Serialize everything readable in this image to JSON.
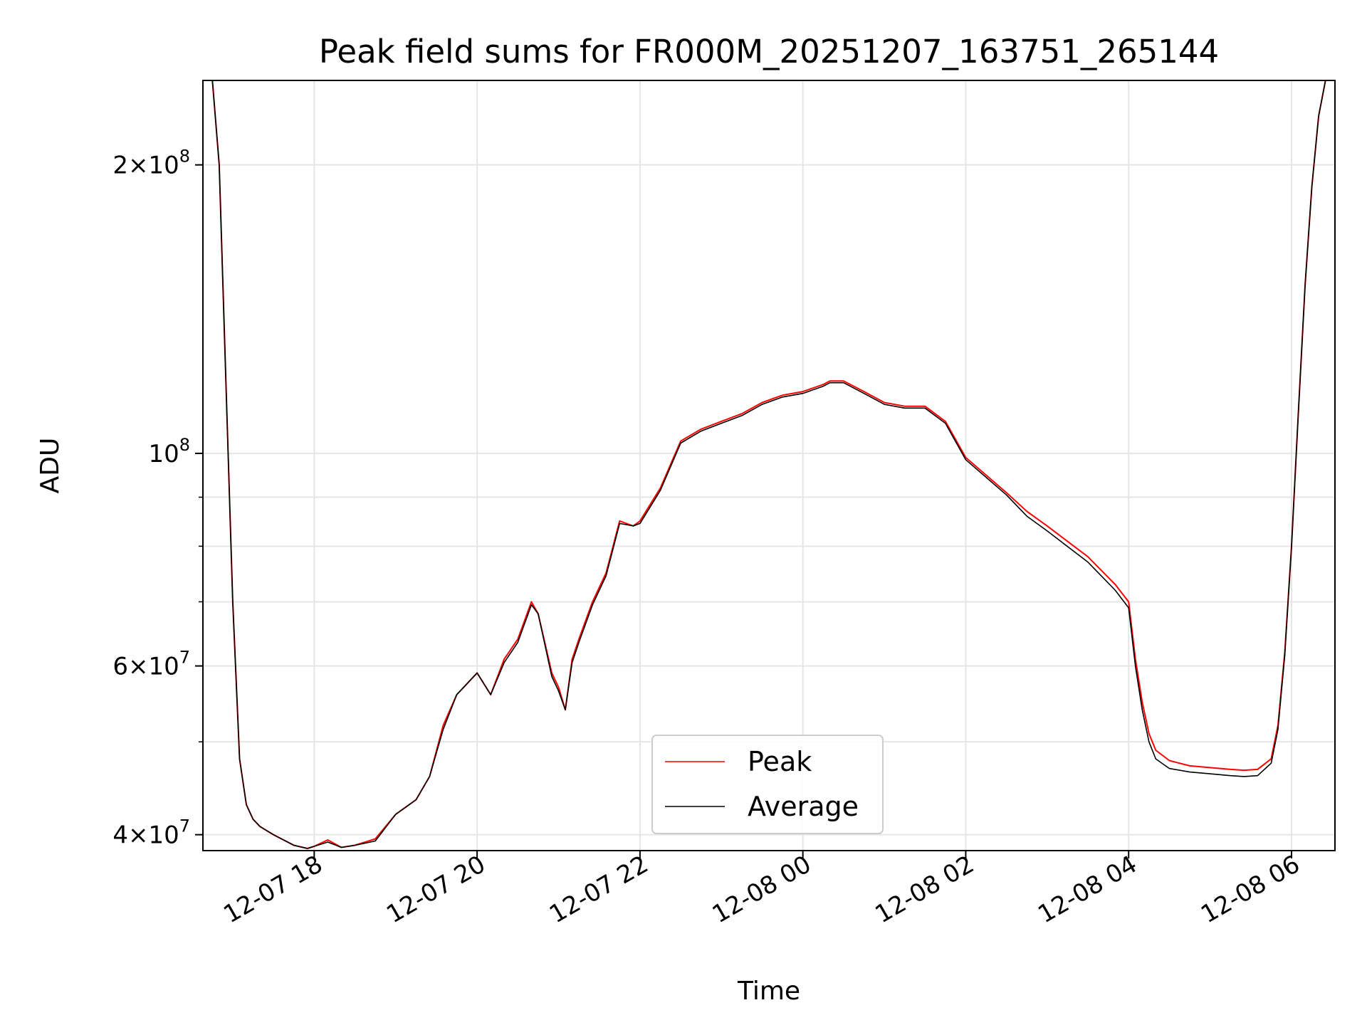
{
  "chart_data": {
    "type": "line",
    "title": "Peak field sums for FR000M_20251207_163751_265144",
    "xlabel": "Time",
    "ylabel": "ADU",
    "yscale": "log",
    "xlim": [
      "2025-12-07 16:38",
      "2025-12-08 06:32"
    ],
    "ylim": [
      38500000,
      245000000
    ],
    "grid": true,
    "legend_position": "bottom-center",
    "x_ticks": [
      "12-07 18",
      "12-07 20",
      "12-07 22",
      "12-08 00",
      "12-08 02",
      "12-08 04",
      "12-08 06"
    ],
    "y_ticks": [
      {
        "value": 40000000,
        "base": "4",
        "exp": "7"
      },
      {
        "value": 60000000,
        "base": "6",
        "exp": "7"
      },
      {
        "value": 100000000,
        "base": "",
        "exp": "8"
      },
      {
        "value": 200000000,
        "base": "2",
        "exp": "8"
      }
    ],
    "series": [
      {
        "name": "Peak",
        "color": "#ff0000",
        "x": [
          "2025-12-07 16:38",
          "2025-12-07 16:45",
          "2025-12-07 16:50",
          "2025-12-07 16:55",
          "2025-12-07 17:00",
          "2025-12-07 17:05",
          "2025-12-07 17:10",
          "2025-12-07 17:15",
          "2025-12-07 17:20",
          "2025-12-07 17:30",
          "2025-12-07 17:45",
          "2025-12-07 17:55",
          "2025-12-07 18:00",
          "2025-12-07 18:10",
          "2025-12-07 18:20",
          "2025-12-07 18:30",
          "2025-12-07 18:45",
          "2025-12-07 19:00",
          "2025-12-07 19:15",
          "2025-12-07 19:25",
          "2025-12-07 19:35",
          "2025-12-07 19:45",
          "2025-12-07 20:00",
          "2025-12-07 20:10",
          "2025-12-07 20:20",
          "2025-12-07 20:30",
          "2025-12-07 20:40",
          "2025-12-07 20:45",
          "2025-12-07 20:55",
          "2025-12-07 21:00",
          "2025-12-07 21:05",
          "2025-12-07 21:10",
          "2025-12-07 21:15",
          "2025-12-07 21:25",
          "2025-12-07 21:35",
          "2025-12-07 21:45",
          "2025-12-07 21:55",
          "2025-12-07 22:00",
          "2025-12-07 22:15",
          "2025-12-07 22:30",
          "2025-12-07 22:45",
          "2025-12-07 23:00",
          "2025-12-07 23:15",
          "2025-12-07 23:30",
          "2025-12-07 23:45",
          "2025-12-08 00:00",
          "2025-12-08 00:15",
          "2025-12-08 00:20",
          "2025-12-08 00:30",
          "2025-12-08 00:45",
          "2025-12-08 01:00",
          "2025-12-08 01:15",
          "2025-12-08 01:30",
          "2025-12-08 01:45",
          "2025-12-08 02:00",
          "2025-12-08 02:30",
          "2025-12-08 02:45",
          "2025-12-08 03:00",
          "2025-12-08 03:30",
          "2025-12-08 03:50",
          "2025-12-08 04:00",
          "2025-12-08 04:05",
          "2025-12-08 04:10",
          "2025-12-08 04:15",
          "2025-12-08 04:20",
          "2025-12-08 04:30",
          "2025-12-08 04:45",
          "2025-12-08 05:00",
          "2025-12-08 05:15",
          "2025-12-08 05:25",
          "2025-12-08 05:35",
          "2025-12-08 05:45",
          "2025-12-08 05:50",
          "2025-12-08 05:55",
          "2025-12-08 06:00",
          "2025-12-08 06:05",
          "2025-12-08 06:10",
          "2025-12-08 06:15",
          "2025-12-08 06:20",
          "2025-12-08 06:25",
          "2025-12-08 06:28"
        ],
        "values": [
          245000000,
          245000000,
          200000000,
          118000000,
          70000000,
          48000000,
          43000000,
          41500000,
          40800000,
          40000000,
          39000000,
          38700000,
          38900000,
          39500000,
          38800000,
          39000000,
          39600000,
          42000000,
          43500000,
          46000000,
          52000000,
          56000000,
          59000000,
          56000000,
          61000000,
          64000000,
          70000000,
          68000000,
          59000000,
          57000000,
          54000000,
          61000000,
          64000000,
          70000000,
          75000000,
          85000000,
          84000000,
          85000000,
          92000000,
          103000000,
          106000000,
          108000000,
          110000000,
          113000000,
          115000000,
          116000000,
          118000000,
          119000000,
          119000000,
          116000000,
          113000000,
          112000000,
          112000000,
          108000000,
          99000000,
          91000000,
          87000000,
          84000000,
          78000000,
          73000000,
          70000000,
          61000000,
          55000000,
          51000000,
          49000000,
          47800000,
          47200000,
          47000000,
          46800000,
          46700000,
          46800000,
          48000000,
          52000000,
          62000000,
          80000000,
          110000000,
          150000000,
          190000000,
          225000000,
          245000000,
          245000000
        ]
      },
      {
        "name": "Average",
        "color": "#000000",
        "x": [
          "2025-12-07 16:38",
          "2025-12-07 16:45",
          "2025-12-07 16:50",
          "2025-12-07 16:55",
          "2025-12-07 17:00",
          "2025-12-07 17:05",
          "2025-12-07 17:10",
          "2025-12-07 17:15",
          "2025-12-07 17:20",
          "2025-12-07 17:30",
          "2025-12-07 17:45",
          "2025-12-07 17:55",
          "2025-12-07 18:00",
          "2025-12-07 18:10",
          "2025-12-07 18:20",
          "2025-12-07 18:30",
          "2025-12-07 18:45",
          "2025-12-07 19:00",
          "2025-12-07 19:15",
          "2025-12-07 19:25",
          "2025-12-07 19:35",
          "2025-12-07 19:45",
          "2025-12-07 20:00",
          "2025-12-07 20:10",
          "2025-12-07 20:20",
          "2025-12-07 20:30",
          "2025-12-07 20:40",
          "2025-12-07 20:45",
          "2025-12-07 20:55",
          "2025-12-07 21:00",
          "2025-12-07 21:05",
          "2025-12-07 21:10",
          "2025-12-07 21:15",
          "2025-12-07 21:25",
          "2025-12-07 21:35",
          "2025-12-07 21:45",
          "2025-12-07 21:55",
          "2025-12-07 22:00",
          "2025-12-07 22:15",
          "2025-12-07 22:30",
          "2025-12-07 22:45",
          "2025-12-07 23:00",
          "2025-12-07 23:15",
          "2025-12-07 23:30",
          "2025-12-07 23:45",
          "2025-12-08 00:00",
          "2025-12-08 00:15",
          "2025-12-08 00:20",
          "2025-12-08 00:30",
          "2025-12-08 00:45",
          "2025-12-08 01:00",
          "2025-12-08 01:15",
          "2025-12-08 01:30",
          "2025-12-08 01:45",
          "2025-12-08 02:00",
          "2025-12-08 02:30",
          "2025-12-08 02:45",
          "2025-12-08 03:00",
          "2025-12-08 03:30",
          "2025-12-08 03:50",
          "2025-12-08 04:00",
          "2025-12-08 04:05",
          "2025-12-08 04:10",
          "2025-12-08 04:15",
          "2025-12-08 04:20",
          "2025-12-08 04:30",
          "2025-12-08 04:45",
          "2025-12-08 05:00",
          "2025-12-08 05:15",
          "2025-12-08 05:25",
          "2025-12-08 05:35",
          "2025-12-08 05:45",
          "2025-12-08 05:50",
          "2025-12-08 05:55",
          "2025-12-08 06:00",
          "2025-12-08 06:05",
          "2025-12-08 06:10",
          "2025-12-08 06:15",
          "2025-12-08 06:20",
          "2025-12-08 06:25",
          "2025-12-08 06:28"
        ],
        "values": [
          245000000,
          245000000,
          200000000,
          118000000,
          70000000,
          48000000,
          43000000,
          41500000,
          40800000,
          40000000,
          39000000,
          38700000,
          38900000,
          39300000,
          38800000,
          39000000,
          39400000,
          42000000,
          43500000,
          46000000,
          51500000,
          56000000,
          59000000,
          56000000,
          60500000,
          63500000,
          69500000,
          68000000,
          58500000,
          56500000,
          54000000,
          60500000,
          63500000,
          69500000,
          74500000,
          84500000,
          84000000,
          84500000,
          91500000,
          102500000,
          105500000,
          107500000,
          109500000,
          112500000,
          114500000,
          115500000,
          117500000,
          118500000,
          118500000,
          115500000,
          112500000,
          111500000,
          111500000,
          107500000,
          98500000,
          90500000,
          86000000,
          83000000,
          77000000,
          72000000,
          69000000,
          60000000,
          54000000,
          50000000,
          48000000,
          46900000,
          46500000,
          46300000,
          46100000,
          46000000,
          46100000,
          47500000,
          51500000,
          61500000,
          80000000,
          110000000,
          150000000,
          190000000,
          225000000,
          245000000,
          245000000
        ]
      }
    ]
  }
}
